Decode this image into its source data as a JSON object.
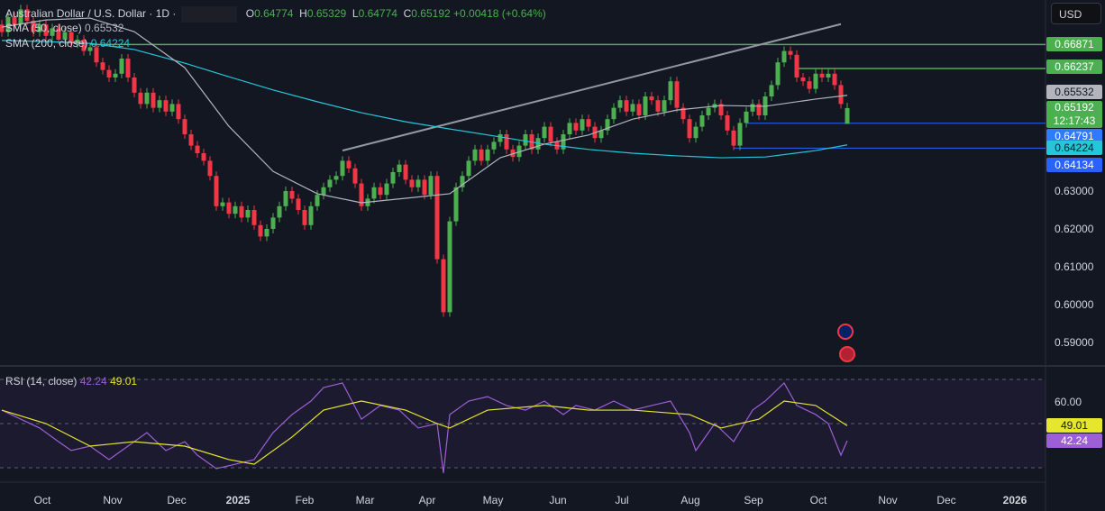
{
  "header": {
    "symbol": "Australian Dollar / U.S. Dollar · 1D ·",
    "o_label": "O",
    "o": "0.64774",
    "h_label": "H",
    "h": "0.65329",
    "l_label": "L",
    "l": "0.64774",
    "c_label": "C",
    "c": "0.65192",
    "change": "+0.00418 (+0.64%)",
    "sma50_label": "SMA (50, close)",
    "sma50_value": "0.65532",
    "sma200_label": "SMA (200, close)",
    "sma200_value": "0.64224",
    "rsi_label": "RSI (14, close)",
    "rsi_value": "42.24",
    "rsi_ma_value": "49.01"
  },
  "currency_button": "USD",
  "chart_data": {
    "type": "candlestick",
    "price_axis": {
      "ticks": [
        "0.63000",
        "0.62000",
        "0.61000",
        "0.60000",
        "0.59000"
      ],
      "tick_values": [
        0.63,
        0.62,
        0.61,
        0.6,
        0.59
      ],
      "ylim": [
        0.585,
        0.68
      ]
    },
    "time_axis": {
      "labels": [
        "Oct",
        "Nov",
        "Dec",
        "2025",
        "Feb",
        "Mar",
        "Apr",
        "May",
        "Jun",
        "Jul",
        "Aug",
        "Sep",
        "Oct",
        "Nov",
        "Dec",
        "2026"
      ]
    },
    "closes": [
      0.672,
      0.676,
      0.674,
      0.678,
      0.675,
      0.672,
      0.674,
      0.671,
      0.673,
      0.67,
      0.672,
      0.669,
      0.67,
      0.667,
      0.668,
      0.664,
      0.662,
      0.66,
      0.661,
      0.665,
      0.66,
      0.656,
      0.653,
      0.656,
      0.652,
      0.654,
      0.651,
      0.653,
      0.649,
      0.645,
      0.642,
      0.64,
      0.638,
      0.634,
      0.626,
      0.627,
      0.624,
      0.626,
      0.623,
      0.625,
      0.621,
      0.618,
      0.62,
      0.623,
      0.626,
      0.63,
      0.628,
      0.625,
      0.621,
      0.626,
      0.629,
      0.631,
      0.633,
      0.634,
      0.638,
      0.636,
      0.632,
      0.626,
      0.628,
      0.631,
      0.629,
      0.632,
      0.635,
      0.637,
      0.633,
      0.631,
      0.633,
      0.629,
      0.634,
      0.612,
      0.598,
      0.622,
      0.631,
      0.634,
      0.638,
      0.641,
      0.638,
      0.641,
      0.643,
      0.645,
      0.641,
      0.639,
      0.642,
      0.645,
      0.641,
      0.644,
      0.647,
      0.643,
      0.641,
      0.645,
      0.648,
      0.646,
      0.649,
      0.647,
      0.644,
      0.646,
      0.649,
      0.652,
      0.654,
      0.651,
      0.653,
      0.65,
      0.655,
      0.654,
      0.651,
      0.654,
      0.659,
      0.652,
      0.649,
      0.644,
      0.647,
      0.65,
      0.652,
      0.653,
      0.65,
      0.646,
      0.642,
      0.648,
      0.651,
      0.653,
      0.65,
      0.655,
      0.658,
      0.664,
      0.667,
      0.666,
      0.66,
      0.659,
      0.657,
      0.661,
      0.66,
      0.661,
      0.658,
      0.653
    ],
    "last_candle": {
      "open": 0.64774,
      "high": 0.65329,
      "low": 0.64774,
      "close": 0.65192
    },
    "sma50": [
      [
        0,
        0.6733
      ],
      [
        7,
        0.6752
      ],
      [
        14,
        0.6757
      ],
      [
        21,
        0.6721
      ],
      [
        29,
        0.6626
      ],
      [
        36,
        0.6471
      ],
      [
        43,
        0.6352
      ],
      [
        50,
        0.6293
      ],
      [
        57,
        0.6269
      ],
      [
        64,
        0.6281
      ],
      [
        71,
        0.6293
      ],
      [
        79,
        0.6388
      ],
      [
        86,
        0.6424
      ],
      [
        93,
        0.6448
      ],
      [
        100,
        0.649
      ],
      [
        107,
        0.6514
      ],
      [
        114,
        0.6526
      ],
      [
        121,
        0.6524
      ],
      [
        129,
        0.6543
      ],
      [
        134,
        0.6553
      ]
    ],
    "sma200": [
      [
        0,
        0.6698
      ],
      [
        7,
        0.6695
      ],
      [
        14,
        0.669
      ],
      [
        21,
        0.6674
      ],
      [
        29,
        0.6638
      ],
      [
        36,
        0.6602
      ],
      [
        43,
        0.6567
      ],
      [
        50,
        0.6536
      ],
      [
        57,
        0.6507
      ],
      [
        64,
        0.6483
      ],
      [
        71,
        0.6464
      ],
      [
        79,
        0.6443
      ],
      [
        86,
        0.6424
      ],
      [
        93,
        0.641
      ],
      [
        100,
        0.64
      ],
      [
        107,
        0.6393
      ],
      [
        114,
        0.6388
      ],
      [
        121,
        0.639
      ],
      [
        129,
        0.6407
      ],
      [
        134,
        0.6422
      ]
    ],
    "trendline": [
      [
        54,
        0.6407
      ],
      [
        133,
        0.6741
      ]
    ],
    "price_lines": [
      {
        "value": "0.66871",
        "color": "#4caf50",
        "from_bar": 14
      },
      {
        "value": "0.66237",
        "color": "#4caf50",
        "from_bar": 126
      },
      {
        "value": "0.64791",
        "color": "#2962ff",
        "from_bar": 118
      },
      {
        "value": "0.64134",
        "color": "#2962ff",
        "from_bar": 116
      }
    ],
    "price_tags": [
      {
        "value": "0.66871",
        "bg": "#4caf50",
        "fg": "#ffffff"
      },
      {
        "value": "0.66237",
        "bg": "#4caf50",
        "fg": "#ffffff"
      },
      {
        "value": "0.65532",
        "bg": "#b2b5be",
        "fg": "#131722"
      },
      {
        "value": "0.65192",
        "bg": "#4caf50",
        "fg": "#ffffff",
        "sub": "12:17:43"
      },
      {
        "value": "0.64791",
        "bg": "#2f7bff",
        "fg": "#ffffff"
      },
      {
        "value": "0.64224",
        "bg": "#26c6da",
        "fg": "#131722"
      },
      {
        "value": "0.64134",
        "bg": "#2962ff",
        "fg": "#ffffff"
      }
    ],
    "rsi": {
      "levels": [
        70,
        50,
        30
      ],
      "tick": "60.00",
      "tick_value": 60,
      "values": [
        [
          0,
          56.1
        ],
        [
          3,
          52
        ],
        [
          6,
          48
        ],
        [
          9,
          41.8
        ],
        [
          11,
          37.8
        ],
        [
          14,
          39.8
        ],
        [
          17,
          33.7
        ],
        [
          20,
          39.8
        ],
        [
          23,
          45.9
        ],
        [
          26,
          37.8
        ],
        [
          29,
          41.8
        ],
        [
          31,
          35.7
        ],
        [
          34,
          29.6
        ],
        [
          37,
          31.6
        ],
        [
          40,
          33.7
        ],
        [
          43,
          45.9
        ],
        [
          46,
          54.1
        ],
        [
          49,
          60.2
        ],
        [
          51,
          66.3
        ],
        [
          54,
          68.4
        ],
        [
          57,
          52
        ],
        [
          60,
          58.2
        ],
        [
          63,
          56.1
        ],
        [
          66,
          48
        ],
        [
          69,
          50
        ],
        [
          70,
          27.6
        ],
        [
          71,
          54.1
        ],
        [
          74,
          60.2
        ],
        [
          77,
          62.2
        ],
        [
          80,
          58.2
        ],
        [
          83,
          56.1
        ],
        [
          86,
          60.2
        ],
        [
          89,
          54.1
        ],
        [
          91,
          58.2
        ],
        [
          94,
          56.1
        ],
        [
          97,
          60.2
        ],
        [
          100,
          56.1
        ],
        [
          103,
          58.2
        ],
        [
          106,
          60.2
        ],
        [
          109,
          45.9
        ],
        [
          110,
          37.8
        ],
        [
          113,
          50
        ],
        [
          116,
          41.8
        ],
        [
          119,
          56.1
        ],
        [
          121,
          60.2
        ],
        [
          124,
          68.4
        ],
        [
          126,
          58.2
        ],
        [
          129,
          54.1
        ],
        [
          131,
          50
        ],
        [
          133,
          35.7
        ],
        [
          134,
          42.24
        ]
      ],
      "ma": [
        [
          0,
          56.1
        ],
        [
          7,
          50
        ],
        [
          14,
          39.8
        ],
        [
          21,
          41.8
        ],
        [
          29,
          39.8
        ],
        [
          36,
          33.7
        ],
        [
          40,
          31.6
        ],
        [
          46,
          43.9
        ],
        [
          51,
          56.1
        ],
        [
          57,
          60.2
        ],
        [
          64,
          56.1
        ],
        [
          69,
          50
        ],
        [
          71,
          48
        ],
        [
          77,
          56.1
        ],
        [
          86,
          58.2
        ],
        [
          93,
          56.1
        ],
        [
          100,
          56.1
        ],
        [
          109,
          54.1
        ],
        [
          114,
          48
        ],
        [
          120,
          52
        ],
        [
          124,
          60.2
        ],
        [
          129,
          58.2
        ],
        [
          134,
          49.01
        ]
      ]
    },
    "colors": {
      "up": "#4caf50",
      "down": "#f23645",
      "sma50": "#b2b5be",
      "sma200": "#26c6da",
      "rsi": "#9c5fd6",
      "rsi_ma": "#e6e62e",
      "trend": "#9598a1"
    }
  }
}
